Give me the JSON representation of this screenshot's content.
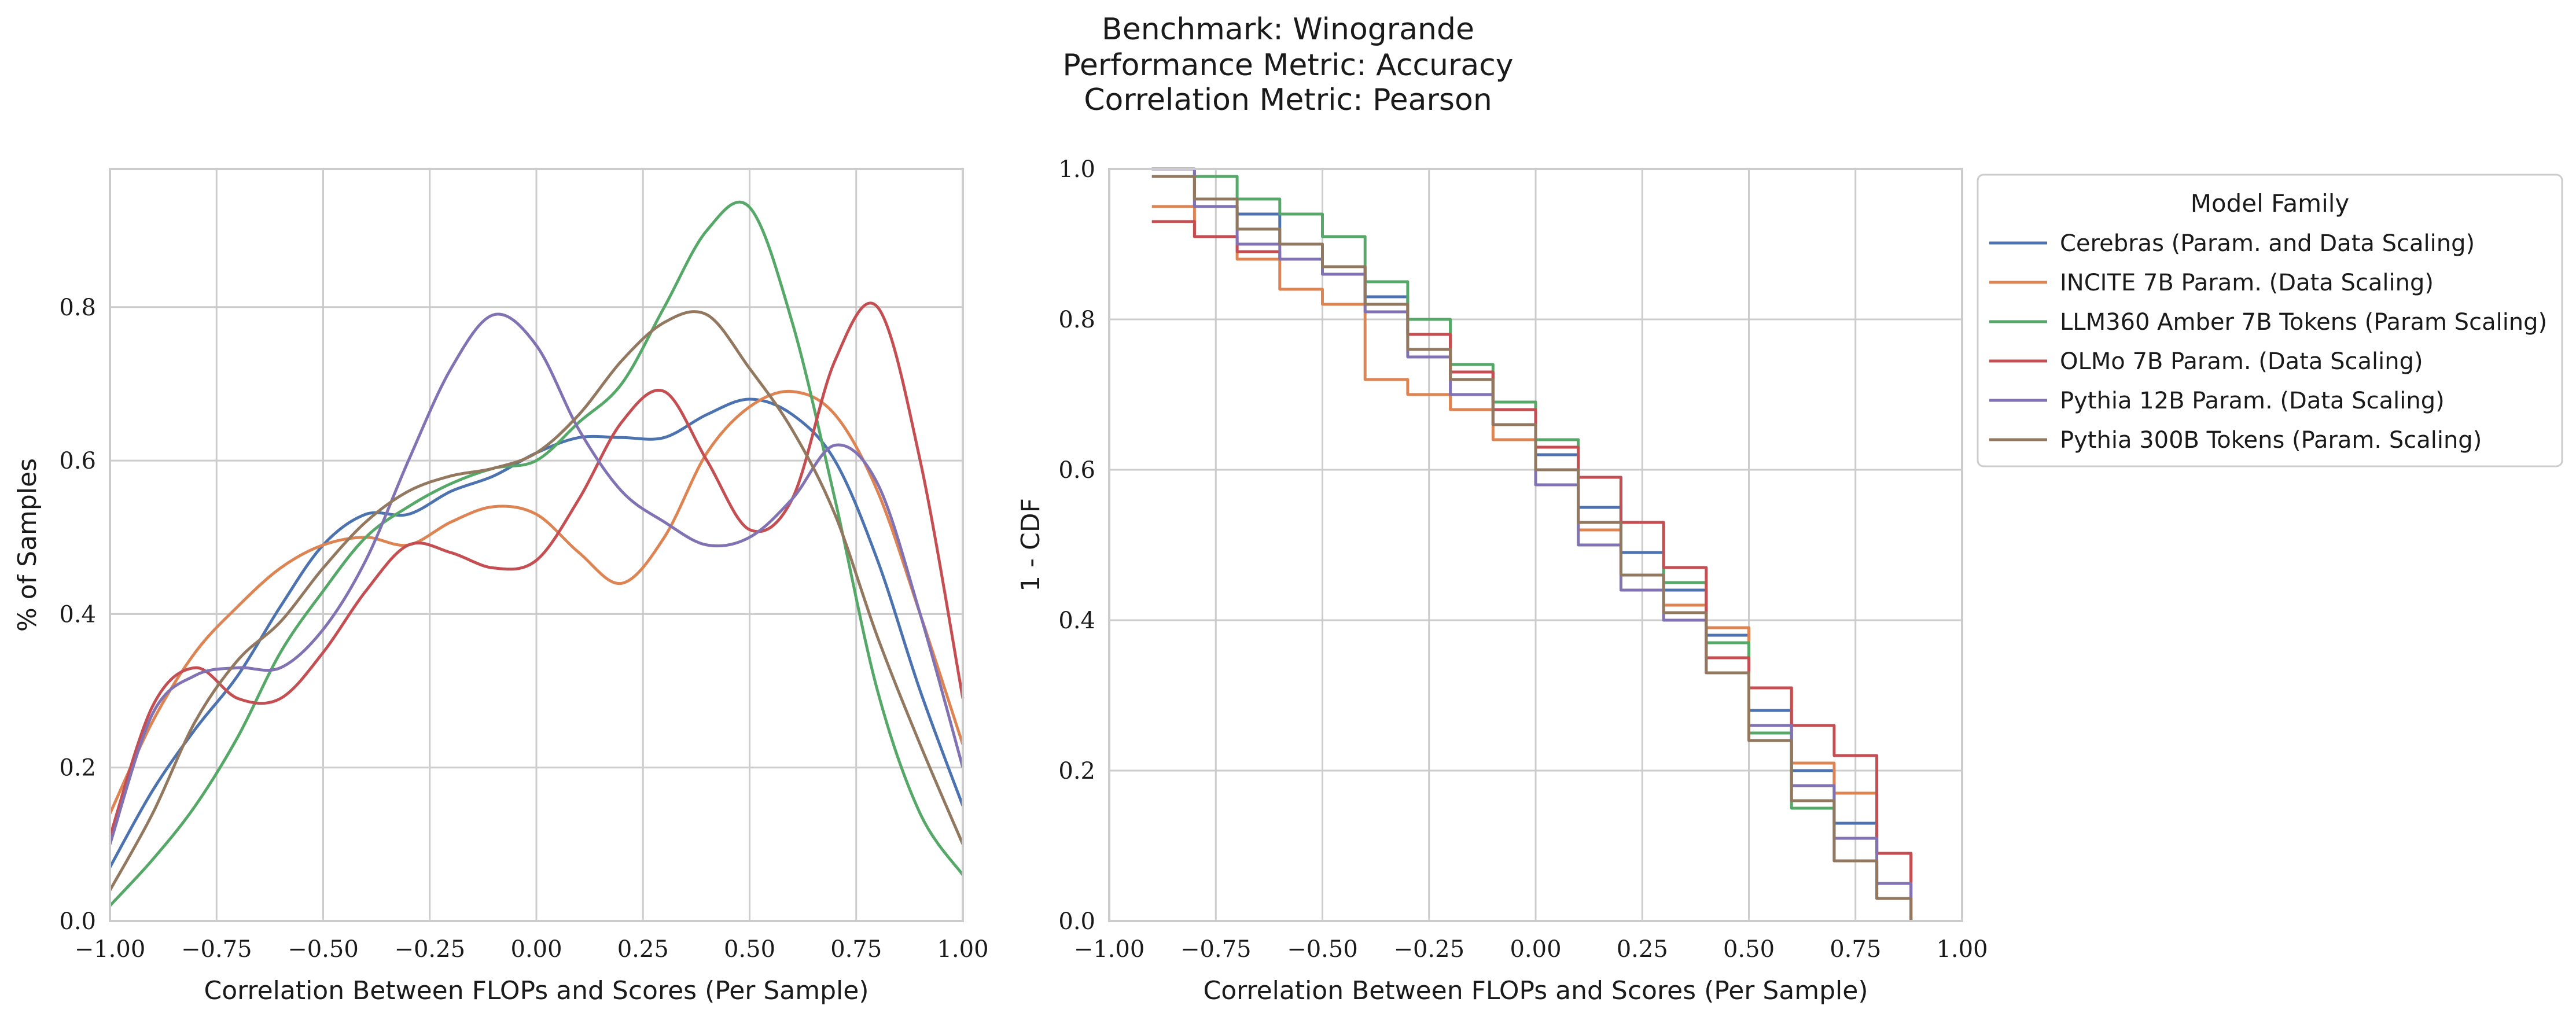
{
  "figure": {
    "title_lines": [
      "Benchmark: Winogrande",
      "Performance Metric: Accuracy",
      "Correlation Metric: Pearson"
    ]
  },
  "colors": {
    "Cerebras": "#4c72b0",
    "INCITE": "#dd8452",
    "LLM360": "#55a868",
    "OLMo": "#c44e52",
    "Pythia12B": "#8172b3",
    "Pythia300B": "#937860"
  },
  "chart_data": [
    {
      "type": "line",
      "subtype": "kde",
      "xlabel": "Correlation Between FLOPs and Scores (Per Sample)",
      "ylabel": "% of Samples",
      "xlim": [
        -1.0,
        1.0
      ],
      "ylim": [
        0.0,
        0.98
      ],
      "xticks": [
        "−1.00",
        "−0.75",
        "−0.50",
        "−0.25",
        "0.00",
        "0.25",
        "0.50",
        "0.75",
        "1.00"
      ],
      "yticks": [
        "0.0",
        "0.2",
        "0.4",
        "0.6",
        "0.8"
      ],
      "grid": true,
      "x": [
        -1.0,
        -0.9,
        -0.8,
        -0.7,
        -0.6,
        -0.5,
        -0.4,
        -0.3,
        -0.2,
        -0.1,
        0.0,
        0.1,
        0.2,
        0.3,
        0.4,
        0.5,
        0.6,
        0.7,
        0.8,
        0.9,
        1.0
      ],
      "series": [
        {
          "name": "Cerebras (Param. and Data Scaling)",
          "color_key": "Cerebras",
          "values": [
            0.07,
            0.17,
            0.25,
            0.32,
            0.41,
            0.49,
            0.53,
            0.53,
            0.56,
            0.58,
            0.61,
            0.63,
            0.63,
            0.63,
            0.66,
            0.68,
            0.66,
            0.6,
            0.47,
            0.3,
            0.15
          ]
        },
        {
          "name": "INCITE 7B Param. (Data Scaling)",
          "color_key": "INCITE",
          "values": [
            0.14,
            0.26,
            0.35,
            0.41,
            0.46,
            0.49,
            0.5,
            0.49,
            0.52,
            0.54,
            0.53,
            0.48,
            0.44,
            0.5,
            0.61,
            0.67,
            0.69,
            0.66,
            0.56,
            0.4,
            0.23
          ]
        },
        {
          "name": "LLM360 Amber 7B Tokens (Param Scaling)",
          "color_key": "LLM360",
          "values": [
            0.02,
            0.08,
            0.15,
            0.24,
            0.35,
            0.43,
            0.5,
            0.54,
            0.57,
            0.59,
            0.6,
            0.65,
            0.7,
            0.8,
            0.9,
            0.93,
            0.78,
            0.55,
            0.3,
            0.14,
            0.06
          ]
        },
        {
          "name": "OLMo 7B Param. (Data Scaling)",
          "color_key": "OLMo",
          "values": [
            0.11,
            0.28,
            0.33,
            0.29,
            0.29,
            0.35,
            0.43,
            0.49,
            0.48,
            0.46,
            0.47,
            0.55,
            0.65,
            0.69,
            0.6,
            0.51,
            0.55,
            0.73,
            0.8,
            0.6,
            0.29
          ]
        },
        {
          "name": "Pythia 12B Param. (Data Scaling)",
          "color_key": "Pythia12B",
          "values": [
            0.1,
            0.27,
            0.32,
            0.33,
            0.33,
            0.38,
            0.47,
            0.6,
            0.72,
            0.79,
            0.75,
            0.64,
            0.56,
            0.52,
            0.49,
            0.5,
            0.55,
            0.62,
            0.57,
            0.4,
            0.2
          ]
        },
        {
          "name": "Pythia 300B Tokens (Param. Scaling)",
          "color_key": "Pythia300B",
          "values": [
            0.04,
            0.14,
            0.26,
            0.34,
            0.39,
            0.46,
            0.52,
            0.56,
            0.58,
            0.59,
            0.61,
            0.66,
            0.73,
            0.78,
            0.79,
            0.72,
            0.64,
            0.53,
            0.37,
            0.23,
            0.1
          ]
        }
      ]
    },
    {
      "type": "line",
      "subtype": "ecdf-complement",
      "xlabel": "Correlation Between FLOPs and Scores (Per Sample)",
      "ylabel": "1 - CDF",
      "xlim": [
        -1.0,
        1.0
      ],
      "ylim": [
        0.0,
        1.0
      ],
      "xticks": [
        "−1.00",
        "−0.75",
        "−0.50",
        "−0.25",
        "0.00",
        "0.25",
        "0.50",
        "0.75",
        "1.00"
      ],
      "yticks": [
        "0.0",
        "0.2",
        "0.4",
        "0.6",
        "0.8",
        "1.0"
      ],
      "grid": true,
      "legend": {
        "title": "Model Family",
        "position": "outside-upper-right"
      },
      "x": [
        -0.9,
        -0.8,
        -0.7,
        -0.6,
        -0.5,
        -0.4,
        -0.3,
        -0.2,
        -0.1,
        0.0,
        0.1,
        0.2,
        0.3,
        0.4,
        0.5,
        0.6,
        0.7,
        0.8,
        0.88
      ],
      "series": [
        {
          "name": "Cerebras (Param. and Data Scaling)",
          "color_key": "Cerebras",
          "values": [
            1.0,
            0.95,
            0.94,
            0.9,
            0.87,
            0.83,
            0.78,
            0.73,
            0.69,
            0.62,
            0.55,
            0.49,
            0.44,
            0.38,
            0.28,
            0.2,
            0.13,
            0.09,
            0.0
          ]
        },
        {
          "name": "INCITE 7B Param. (Data Scaling)",
          "color_key": "INCITE",
          "values": [
            0.95,
            0.91,
            0.88,
            0.84,
            0.82,
            0.72,
            0.7,
            0.68,
            0.64,
            0.58,
            0.52,
            0.46,
            0.42,
            0.39,
            0.31,
            0.21,
            0.17,
            0.09,
            0.0
          ]
        },
        {
          "name": "LLM360 Amber 7B Tokens (Param Scaling)",
          "color_key": "LLM360",
          "values": [
            1.0,
            0.99,
            0.96,
            0.94,
            0.91,
            0.85,
            0.8,
            0.74,
            0.69,
            0.64,
            0.59,
            0.53,
            0.45,
            0.37,
            0.25,
            0.15,
            0.08,
            0.03,
            0.0
          ]
        },
        {
          "name": "OLMo 7B Param. (Data Scaling)",
          "color_key": "OLMo",
          "values": [
            0.93,
            0.91,
            0.89,
            0.88,
            0.87,
            0.82,
            0.78,
            0.73,
            0.68,
            0.63,
            0.59,
            0.53,
            0.47,
            0.35,
            0.31,
            0.26,
            0.22,
            0.09,
            0.0
          ]
        },
        {
          "name": "Pythia 12B Param. (Data Scaling)",
          "color_key": "Pythia12B",
          "values": [
            1.0,
            0.95,
            0.9,
            0.88,
            0.86,
            0.81,
            0.75,
            0.7,
            0.66,
            0.58,
            0.5,
            0.44,
            0.4,
            0.33,
            0.26,
            0.18,
            0.11,
            0.05,
            0.0
          ]
        },
        {
          "name": "Pythia 300B Tokens (Param. Scaling)",
          "color_key": "Pythia300B",
          "values": [
            0.99,
            0.96,
            0.92,
            0.9,
            0.87,
            0.82,
            0.76,
            0.72,
            0.66,
            0.6,
            0.53,
            0.46,
            0.41,
            0.33,
            0.24,
            0.16,
            0.08,
            0.03,
            0.0
          ]
        }
      ]
    }
  ]
}
